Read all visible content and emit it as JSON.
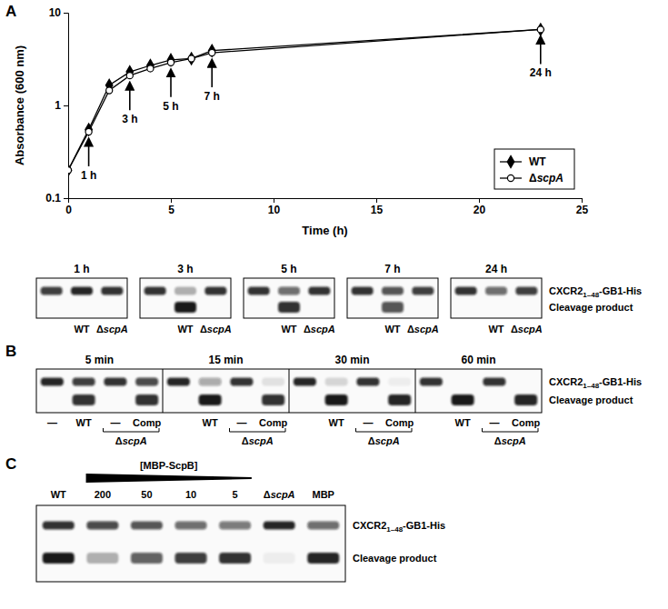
{
  "chart_data": {
    "type": "line",
    "x_label": "Time (h)",
    "y_label": "Absorbance (600 nm)",
    "log": "y",
    "xlim": [
      0,
      25
    ],
    "ylim": [
      0.1,
      10
    ],
    "xticks": [
      0,
      5,
      10,
      15,
      20,
      25
    ],
    "yticks": [
      0.1,
      1,
      10
    ],
    "legend": "lower right",
    "x": [
      0,
      1,
      2,
      3,
      4,
      5,
      6,
      7,
      23
    ],
    "series": [
      {
        "name": "WT",
        "color": "#000000",
        "marker": "diamond",
        "values": [
          0.2,
          0.55,
          1.65,
          2.3,
          2.7,
          3.1,
          3.2,
          3.9,
          6.6
        ]
      },
      {
        "name": "ΔscpA",
        "color": "#000000",
        "marker": "circle-open",
        "values": [
          0.2,
          0.52,
          1.45,
          2.1,
          2.5,
          2.9,
          3.2,
          3.7,
          6.6
        ]
      }
    ],
    "annotations": [
      {
        "text": "1 h",
        "x": 1,
        "y": 0.52
      },
      {
        "text": "3 h",
        "x": 3,
        "y": 2.1
      },
      {
        "text": "5 h",
        "x": 5,
        "y": 2.9
      },
      {
        "text": "7 h",
        "x": 7,
        "y": 3.7
      },
      {
        "text": "24 h",
        "x": 23,
        "y": 6.6
      }
    ]
  },
  "panel_labels": [
    "A",
    "B",
    "C"
  ],
  "band_labels": {
    "full": [
      "CXCR2",
      "1–48",
      "-GB1-His"
    ],
    "cleavage": "Cleavage product"
  },
  "time_course_blot": {
    "panels": [
      {
        "time": "1 h",
        "lanes": [
          {
            "label": null,
            "bands": [
              0.8,
              0
            ]
          },
          {
            "label": "WT",
            "bands": [
              0.9,
              0
            ]
          },
          {
            "label": "ΔscpA",
            "bands": [
              0.85,
              0
            ]
          }
        ]
      },
      {
        "time": "3 h",
        "lanes": [
          {
            "label": null,
            "bands": [
              0.85,
              0
            ]
          },
          {
            "label": "WT",
            "bands": [
              0.3,
              0.95
            ]
          },
          {
            "label": "ΔscpA",
            "bands": [
              0.85,
              0
            ]
          }
        ]
      },
      {
        "time": "5 h",
        "lanes": [
          {
            "label": null,
            "bands": [
              0.85,
              0
            ]
          },
          {
            "label": "WT",
            "bands": [
              0.6,
              0.85
            ]
          },
          {
            "label": "ΔscpA",
            "bands": [
              0.85,
              0
            ]
          }
        ]
      },
      {
        "time": "7 h",
        "lanes": [
          {
            "label": null,
            "bands": [
              0.85,
              0
            ]
          },
          {
            "label": "WT",
            "bands": [
              0.7,
              0.7
            ]
          },
          {
            "label": "ΔscpA",
            "bands": [
              0.8,
              0
            ]
          }
        ]
      },
      {
        "time": "24 h",
        "lanes": [
          {
            "label": null,
            "bands": [
              0.85,
              0
            ]
          },
          {
            "label": "WT",
            "bands": [
              0.6,
              0
            ]
          },
          {
            "label": "ΔscpA",
            "bands": [
              0.8,
              0
            ]
          }
        ]
      }
    ]
  },
  "complementation_blot": {
    "bracket_label": "ΔscpA",
    "panels": [
      {
        "time": "5 min",
        "lanes": [
          {
            "label": "—",
            "bands": [
              0.9,
              0
            ]
          },
          {
            "label": "WT",
            "bands": [
              0.8,
              0.85
            ]
          },
          {
            "label": "—",
            "bands": [
              0.85,
              0
            ]
          },
          {
            "label": "Comp",
            "bands": [
              0.75,
              0.85
            ]
          }
        ]
      },
      {
        "time": "15 min",
        "lanes": [
          {
            "label": null,
            "bands": [
              0.9,
              0
            ]
          },
          {
            "label": "WT",
            "bands": [
              0.35,
              0.95
            ]
          },
          {
            "label": "—",
            "bands": [
              0.85,
              0
            ]
          },
          {
            "label": "Comp",
            "bands": [
              0.1,
              0.85
            ]
          }
        ]
      },
      {
        "time": "30 min",
        "lanes": [
          {
            "label": null,
            "bands": [
              0.9,
              0
            ]
          },
          {
            "label": "WT",
            "bands": [
              0.15,
              0.95
            ]
          },
          {
            "label": "—",
            "bands": [
              0.85,
              0
            ]
          },
          {
            "label": "Comp",
            "bands": [
              0.05,
              0.9
            ]
          }
        ]
      },
      {
        "time": "60 min",
        "lanes": [
          {
            "label": null,
            "bands": [
              0.85,
              0
            ]
          },
          {
            "label": "WT",
            "bands": [
              0,
              0.95
            ]
          },
          {
            "label": "—",
            "bands": [
              0.85,
              0
            ]
          },
          {
            "label": "Comp",
            "bands": [
              0,
              0.9
            ]
          }
        ]
      }
    ]
  },
  "titration_blot": {
    "gradient_label": "[MBP-ScpB]",
    "lanes": [
      {
        "label": "WT",
        "bands": [
          0.85,
          0.95
        ]
      },
      {
        "label": "200",
        "bands": [
          0.75,
          0.3
        ]
      },
      {
        "label": "50",
        "bands": [
          0.7,
          0.65
        ]
      },
      {
        "label": "10",
        "bands": [
          0.6,
          0.8
        ]
      },
      {
        "label": "5",
        "bands": [
          0.55,
          0.85
        ]
      },
      {
        "label": "ΔscpA",
        "bands": [
          0.9,
          0.05
        ]
      },
      {
        "label": "MBP",
        "bands": [
          0.6,
          0.9
        ]
      }
    ]
  }
}
